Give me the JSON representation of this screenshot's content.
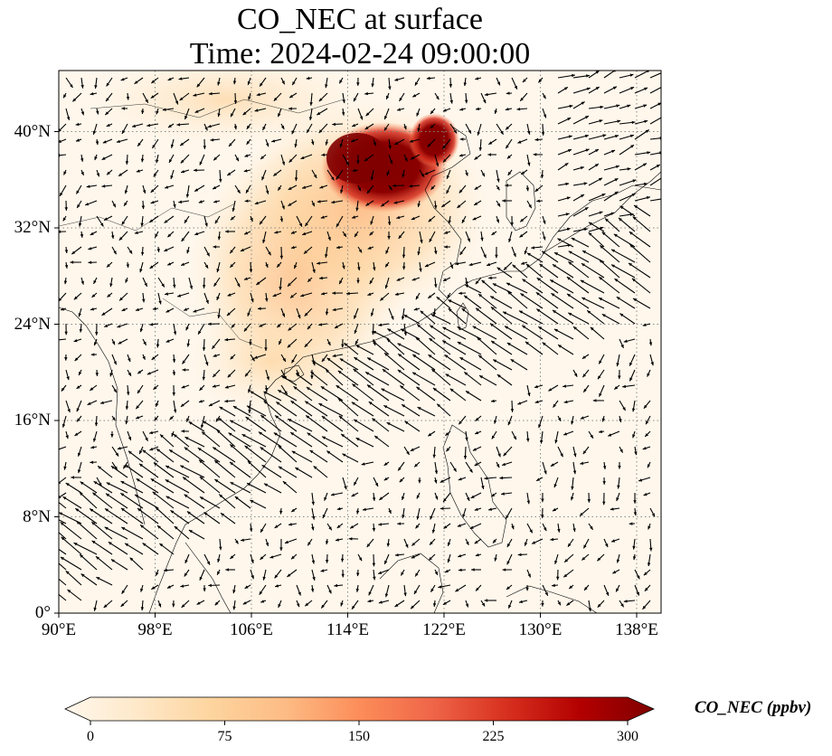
{
  "title": {
    "line1": "CO_NEC at surface",
    "line2": "Time: 2024-02-24 09:00:00"
  },
  "map": {
    "projection": "PlateCarree",
    "lon_range": [
      90,
      140
    ],
    "lat_range": [
      0,
      40
    ],
    "lon_ticks": [
      {
        "value": 90,
        "label": "90°E"
      },
      {
        "value": 98,
        "label": "98°E"
      },
      {
        "value": 106,
        "label": "106°E"
      },
      {
        "value": 114,
        "label": "114°E"
      },
      {
        "value": 122,
        "label": "122°E"
      },
      {
        "value": 130,
        "label": "130°E"
      },
      {
        "value": 138,
        "label": "138°E"
      }
    ],
    "lat_ticks": [
      {
        "value": 0,
        "label": "0°"
      },
      {
        "value": 8,
        "label": "8°N"
      },
      {
        "value": 16,
        "label": "16°N"
      },
      {
        "value": 24,
        "label": "24°N"
      },
      {
        "value": 32,
        "label": "32°N"
      },
      {
        "value": 40,
        "label": "40°N"
      }
    ],
    "gridlines": "dotted grey",
    "overlay": "wind vectors (black arrows)",
    "coastlines": true
  },
  "colorbar": {
    "label": "CO_NEC (ppbv)",
    "colormap": "OrRd",
    "range": [
      0,
      300
    ],
    "extend": "both",
    "ticks": [
      {
        "value": 0,
        "label": "0"
      },
      {
        "value": 75,
        "label": "75"
      },
      {
        "value": 150,
        "label": "150"
      },
      {
        "value": 225,
        "label": "225"
      },
      {
        "value": 300,
        "label": "300"
      }
    ],
    "colors": [
      "#fff7ec",
      "#fee8c8",
      "#fdd49e",
      "#fdbb84",
      "#fc8d59",
      "#ef6548",
      "#d7301f",
      "#b30000",
      "#7f0000"
    ]
  }
}
